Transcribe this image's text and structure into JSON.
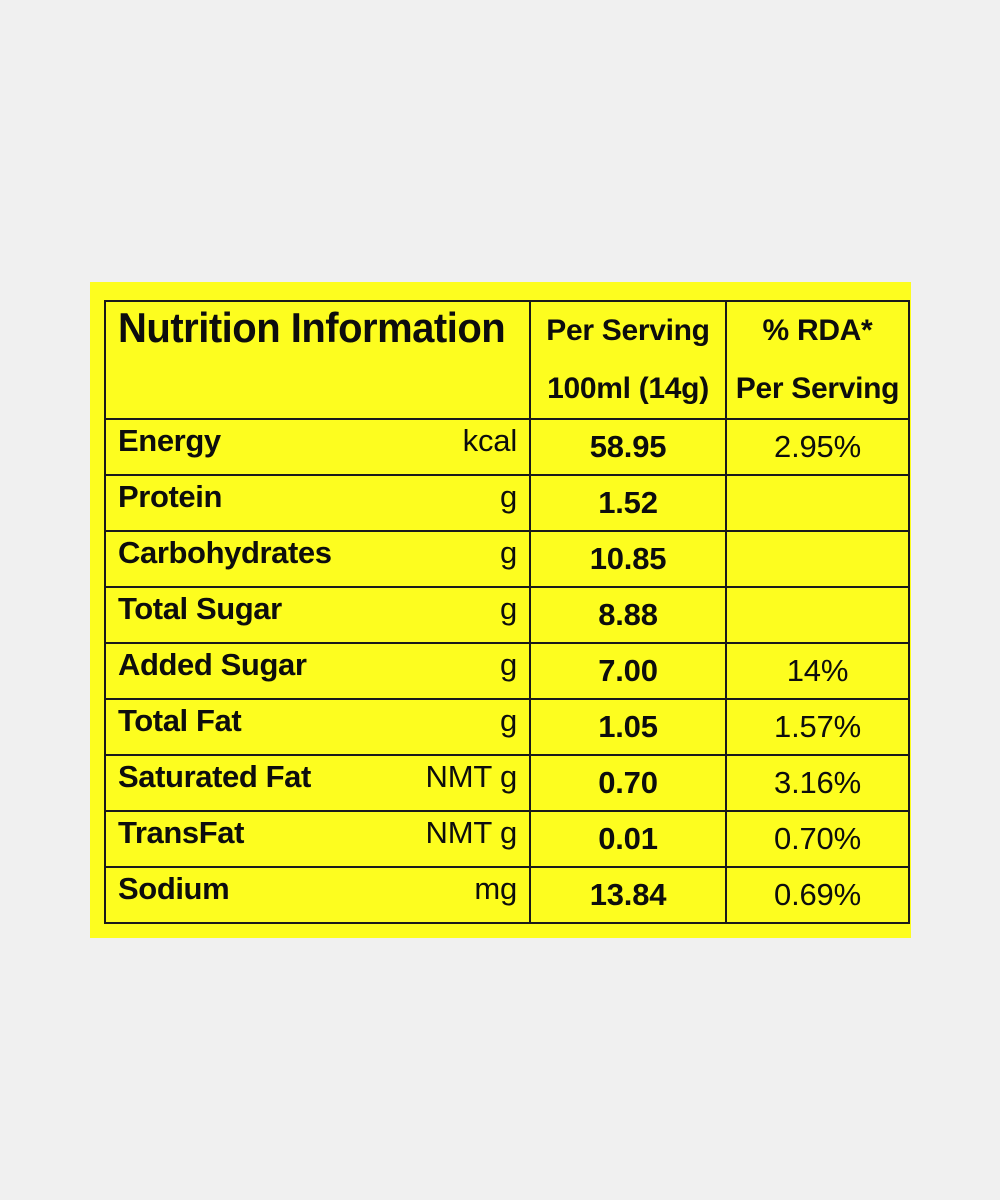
{
  "colors": {
    "page_background": "#f0f0f0",
    "label_background": "#fdfd1f",
    "text": "#0d0d0d",
    "border": "#1a1a1a"
  },
  "table": {
    "title": "Nutrition Information",
    "per_serving_header": [
      "Per Serving",
      "100ml (14g)"
    ],
    "rda_header": [
      "% RDA*",
      "Per Serving"
    ],
    "rows": [
      {
        "nutrient": "Energy",
        "unit": "kcal",
        "per_serving": "58.95",
        "rda": "2.95%"
      },
      {
        "nutrient": "Protein",
        "unit": "g",
        "per_serving": "1.52",
        "rda": ""
      },
      {
        "nutrient": "Carbohydrates",
        "unit": "g",
        "per_serving": "10.85",
        "rda": ""
      },
      {
        "nutrient": "Total Sugar",
        "unit": "g",
        "per_serving": "8.88",
        "rda": ""
      },
      {
        "nutrient": "Added Sugar",
        "unit": "g",
        "per_serving": "7.00",
        "rda": "14%"
      },
      {
        "nutrient": "Total Fat",
        "unit": "g",
        "per_serving": "1.05",
        "rda": "1.57%"
      },
      {
        "nutrient": "Saturated Fat",
        "unit": "NMT g",
        "per_serving": "0.70",
        "rda": "3.16%"
      },
      {
        "nutrient": "TransFat",
        "unit": "NMT g",
        "per_serving": "0.01",
        "rda": "0.70%"
      },
      {
        "nutrient": "Sodium",
        "unit": "mg",
        "per_serving": "13.84",
        "rda": "0.69%"
      }
    ]
  }
}
